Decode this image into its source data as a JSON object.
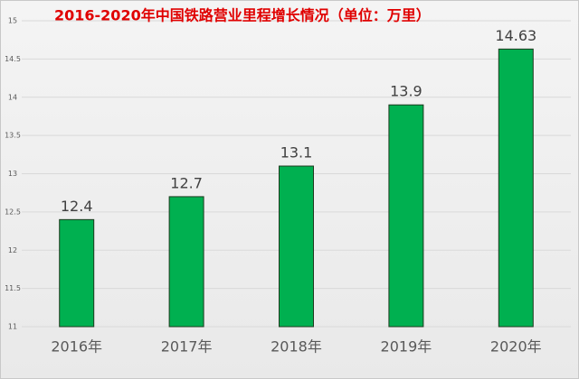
{
  "chart_data": {
    "type": "bar",
    "title": "2016-2020年中国铁路营业里程增长情况（单位：万里）",
    "categories": [
      "2016年",
      "2017年",
      "2018年",
      "2019年",
      "2020年"
    ],
    "values": [
      12.4,
      12.7,
      13.1,
      13.9,
      14.63
    ],
    "color": "#00b050",
    "ylim": [
      11,
      15
    ],
    "yticks": [
      11,
      11.5,
      12,
      12.5,
      13,
      13.5,
      14,
      14.5,
      15
    ],
    "grid": true
  }
}
